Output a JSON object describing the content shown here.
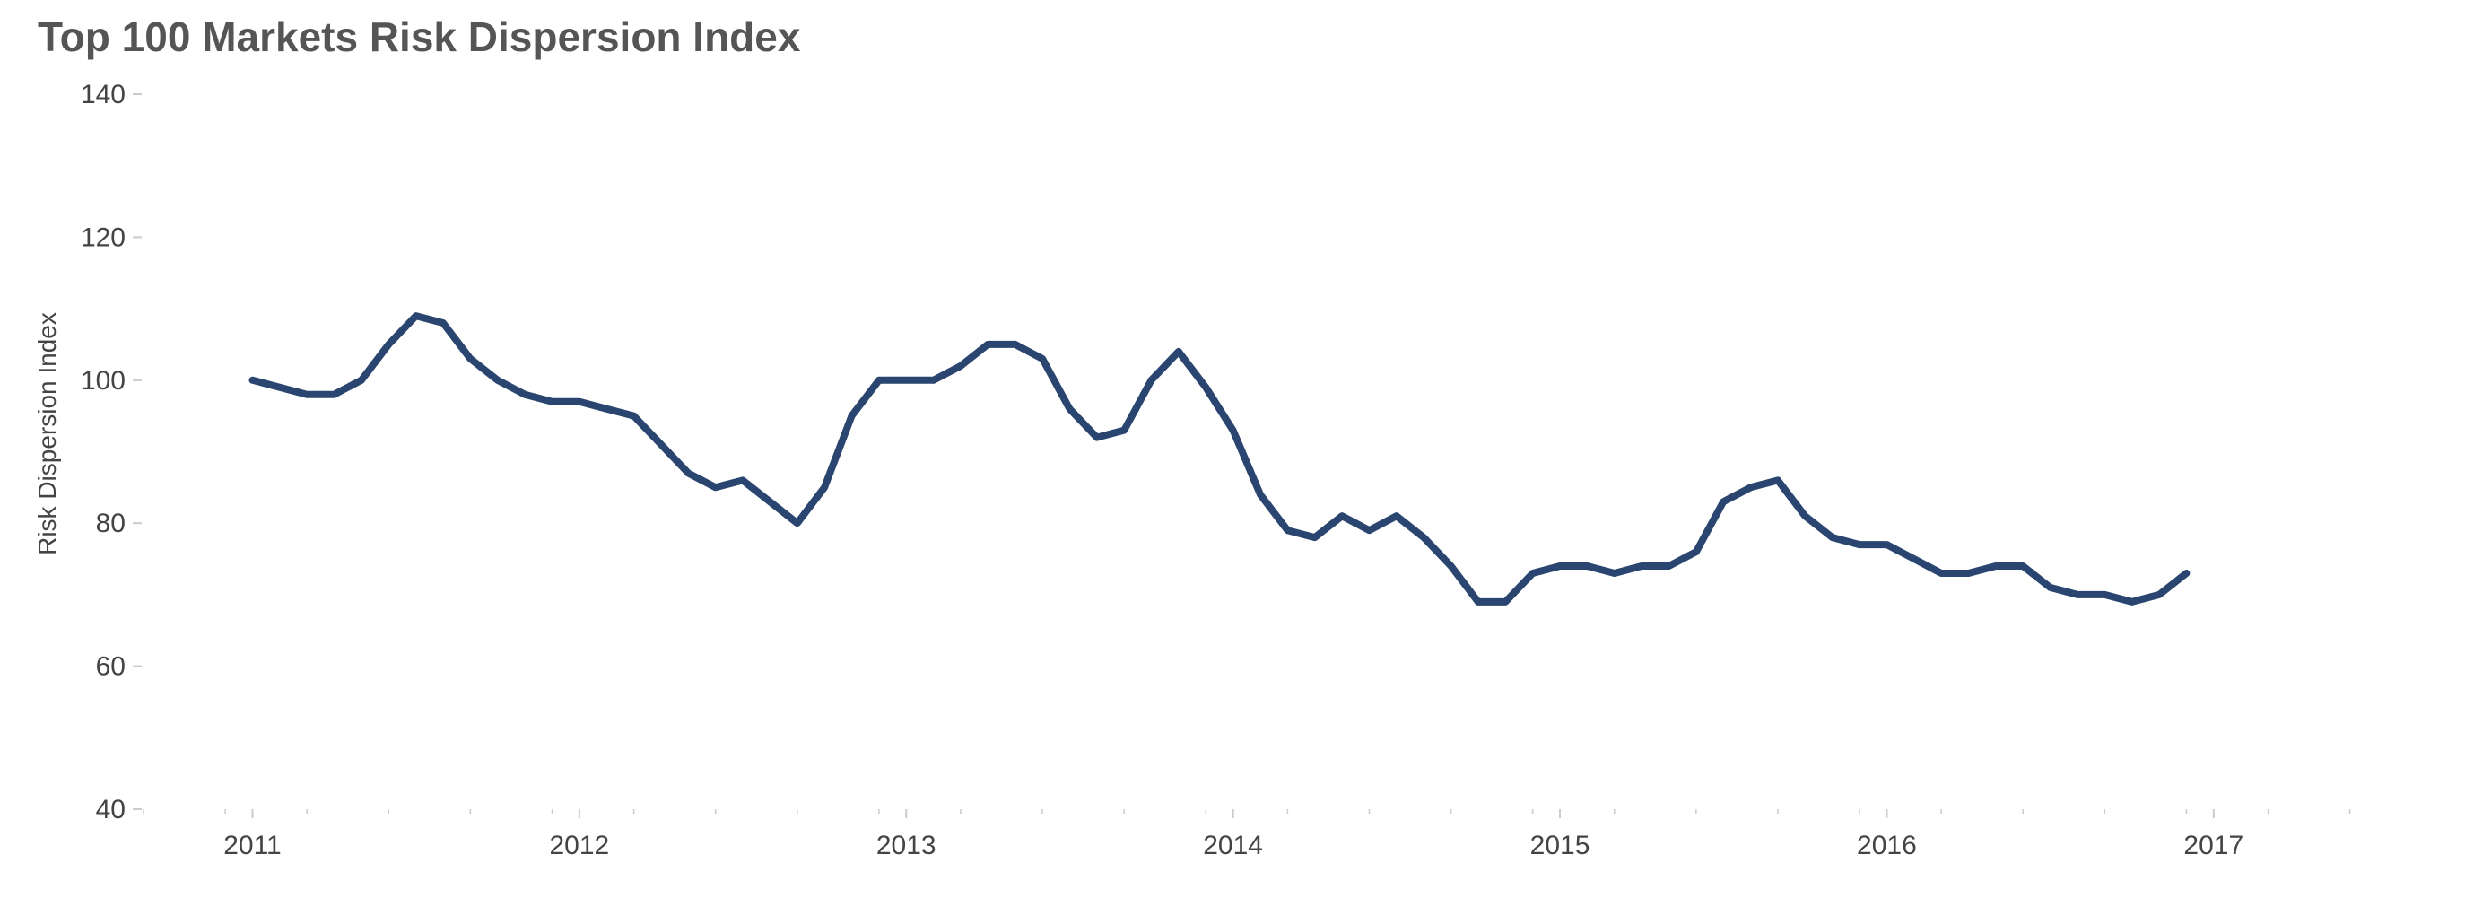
{
  "chart_data": {
    "type": "line",
    "title": "Top 100 Markets Risk Dispersion Index",
    "xlabel": "",
    "ylabel": "Risk Dispersion Index",
    "ylim": [
      40,
      140
    ],
    "yticks": [
      140,
      120,
      100,
      80,
      60,
      40
    ],
    "xlim": [
      "2010-09",
      "2017-07"
    ],
    "xticks": [
      "2011",
      "2012",
      "2013",
      "2014",
      "2015",
      "2016",
      "2017"
    ],
    "grid": false,
    "colors": {
      "line": "#2a4670",
      "text": "#444444",
      "title": "#555555",
      "axis": "#cccccc"
    },
    "series": [
      {
        "x": [
          "2011-01",
          "2011-02",
          "2011-03",
          "2011-04",
          "2011-05",
          "2011-06",
          "2011-07",
          "2011-08",
          "2011-09",
          "2011-10",
          "2011-11",
          "2011-12",
          "2012-01",
          "2012-02",
          "2012-03",
          "2012-04",
          "2012-05",
          "2012-06",
          "2012-07",
          "2012-08",
          "2012-09",
          "2012-10",
          "2012-11",
          "2012-12",
          "2013-01",
          "2013-02",
          "2013-03",
          "2013-04",
          "2013-05",
          "2013-06",
          "2013-07",
          "2013-08",
          "2013-09",
          "2013-10",
          "2013-11",
          "2013-12",
          "2014-01",
          "2014-02",
          "2014-03",
          "2014-04",
          "2014-05",
          "2014-06",
          "2014-07",
          "2014-08",
          "2014-09",
          "2014-10",
          "2014-11",
          "2014-12",
          "2015-01",
          "2015-02",
          "2015-03",
          "2015-04",
          "2015-05",
          "2015-06",
          "2015-07",
          "2015-08",
          "2015-09",
          "2015-10",
          "2015-11",
          "2015-12",
          "2016-01",
          "2016-02",
          "2016-03",
          "2016-04",
          "2016-05",
          "2016-06",
          "2016-07",
          "2016-08",
          "2016-09",
          "2016-10",
          "2016-11",
          "2016-12"
        ],
        "values": [
          100,
          99,
          98,
          98,
          100,
          105,
          109,
          108,
          103,
          100,
          98,
          97,
          97,
          96,
          95,
          91,
          87,
          85,
          86,
          83,
          80,
          85,
          95,
          100,
          100,
          100,
          102,
          105,
          105,
          103,
          96,
          92,
          93,
          100,
          104,
          99,
          93,
          84,
          79,
          78,
          81,
          79,
          81,
          78,
          74,
          69,
          69,
          73,
          74,
          74,
          73,
          74,
          74,
          76,
          83,
          85,
          86,
          81,
          78,
          77,
          77,
          75,
          73,
          73,
          74,
          74,
          71,
          70,
          70,
          69,
          70,
          73
        ]
      }
    ]
  }
}
